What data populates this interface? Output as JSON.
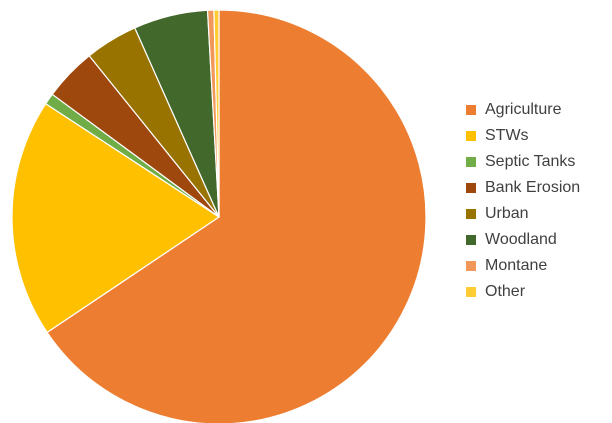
{
  "chart_data": {
    "type": "pie",
    "title": "",
    "legend_position": "right",
    "start_angle_deg": 0,
    "direction": "clockwise",
    "slices": [
      {
        "label": "Agriculture",
        "value": 66.9,
        "color": "#ED7D31"
      },
      {
        "label": "STWs",
        "value": 19.0,
        "color": "#FFC000"
      },
      {
        "label": "Septic Tanks",
        "value": 0.9,
        "color": "#70AD47"
      },
      {
        "label": "Bank Erosion",
        "value": 4.2,
        "color": "#9E480E"
      },
      {
        "label": "Urban",
        "value": 4.2,
        "color": "#997300"
      },
      {
        "label": "Woodland",
        "value": 5.9,
        "color": "#43682B"
      },
      {
        "label": "Montane",
        "value": 0.5,
        "color": "#F1975A"
      },
      {
        "label": "Other",
        "value": 0.4,
        "color": "#FFCD33"
      }
    ]
  }
}
